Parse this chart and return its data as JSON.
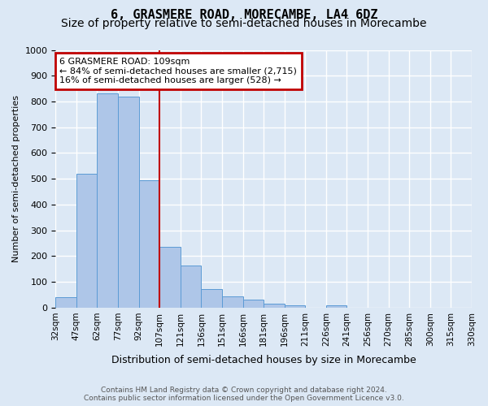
{
  "title": "6, GRASMERE ROAD, MORECAMBE, LA4 6DZ",
  "subtitle": "Size of property relative to semi-detached houses in Morecambe",
  "xlabel": "Distribution of semi-detached houses by size in Morecambe",
  "ylabel": "Number of semi-detached properties",
  "footnote1": "Contains HM Land Registry data © Crown copyright and database right 2024.",
  "footnote2": "Contains public sector information licensed under the Open Government Licence v3.0.",
  "bin_edges": [
    "32sqm",
    "47sqm",
    "62sqm",
    "77sqm",
    "92sqm",
    "107sqm",
    "121sqm",
    "136sqm",
    "151sqm",
    "166sqm",
    "181sqm",
    "196sqm",
    "211sqm",
    "226sqm",
    "241sqm",
    "256sqm",
    "270sqm",
    "285sqm",
    "300sqm",
    "315sqm",
    "330sqm"
  ],
  "bar_heights": [
    42,
    520,
    830,
    820,
    495,
    235,
    163,
    72,
    45,
    30,
    14,
    8,
    0,
    10,
    0,
    0,
    0,
    0,
    0,
    0
  ],
  "bar_color": "#aec6e8",
  "bar_edge_color": "#5b9bd5",
  "vline_pos": 5,
  "vline_color": "#c00000",
  "annotation_title": "6 GRASMERE ROAD: 109sqm",
  "annotation_line1": "← 84% of semi-detached houses are smaller (2,715)",
  "annotation_line2": "16% of semi-detached houses are larger (528) →",
  "annotation_box_color": "#c00000",
  "annotation_fill": "#ffffff",
  "ylim": [
    0,
    1000
  ],
  "yticks": [
    0,
    100,
    200,
    300,
    400,
    500,
    600,
    700,
    800,
    900,
    1000
  ],
  "background_color": "#dce8f5",
  "grid_color": "#ffffff",
  "title_fontsize": 11,
  "subtitle_fontsize": 10
}
